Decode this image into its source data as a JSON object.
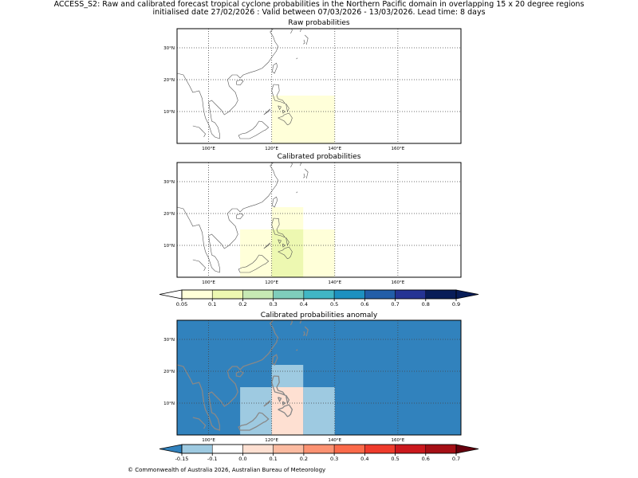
{
  "header": {
    "title_line1": "ACCESS_S2: Raw and calibrated forecast tropical cyclone probabilities in the Northern Pacific domain in overlapping 15 x 20 degree regions",
    "title_line2": "initialised date 27/02/2026 :  Valid between 07/03/2026 - 13/03/2026. Lead time: 8 days"
  },
  "footer": {
    "copyright": "© Commonwealth of Australia 2026, Australian Bureau of Meteorology"
  },
  "chart_data": [
    {
      "type": "heatmap",
      "title": "Raw probabilities",
      "xlim": [
        90,
        180
      ],
      "ylim": [
        0,
        36
      ],
      "xticks": [
        100,
        120,
        140,
        160
      ],
      "xtick_labels": [
        "100°E",
        "120°E",
        "140°E",
        "160°E"
      ],
      "yticks": [
        10,
        20,
        30
      ],
      "ytick_labels": [
        "10°N",
        "20°N",
        "30°N"
      ],
      "grid": true,
      "regions": [
        {
          "lon": [
            120,
            140
          ],
          "lat": [
            0,
            15
          ],
          "value": 0.07
        }
      ]
    },
    {
      "type": "heatmap",
      "title": "Calibrated probabilities",
      "xlim": [
        90,
        180
      ],
      "ylim": [
        0,
        36
      ],
      "xticks": [
        100,
        120,
        140,
        160
      ],
      "xtick_labels": [
        "100°E",
        "120°E",
        "140°E",
        "160°E"
      ],
      "yticks": [
        10,
        20,
        30
      ],
      "ytick_labels": [
        "10°N",
        "20°N",
        "30°N"
      ],
      "grid": true,
      "regions": [
        {
          "lon": [
            110,
            130
          ],
          "lat": [
            0,
            15
          ],
          "value": 0.07
        },
        {
          "lon": [
            120,
            140
          ],
          "lat": [
            0,
            15
          ],
          "value": 0.07
        },
        {
          "lon": [
            120,
            130
          ],
          "lat": [
            0,
            22
          ],
          "value": 0.07
        }
      ]
    },
    {
      "type": "heatmap",
      "title": "Calibrated probabilities anomaly",
      "xlim": [
        90,
        180
      ],
      "ylim": [
        0,
        36
      ],
      "xticks": [
        100,
        120,
        140,
        160
      ],
      "xtick_labels": [
        "100°E",
        "120°E",
        "140°E",
        "160°E"
      ],
      "yticks": [
        10,
        20,
        30
      ],
      "ytick_labels": [
        "10°N",
        "20°N",
        "30°N"
      ],
      "grid": true,
      "background_value": -0.2,
      "regions": [
        {
          "lon": [
            110,
            120
          ],
          "lat": [
            0,
            15
          ],
          "value": -0.12
        },
        {
          "lon": [
            130,
            140
          ],
          "lat": [
            0,
            15
          ],
          "value": -0.12
        },
        {
          "lon": [
            120,
            130
          ],
          "lat": [
            15,
            22
          ],
          "value": -0.12
        },
        {
          "lon": [
            120,
            130
          ],
          "lat": [
            0,
            15
          ],
          "value": 0.0
        }
      ]
    }
  ],
  "colorbars": [
    {
      "name": "probability",
      "ticks": [
        "0.05",
        "0.1",
        "0.2",
        "0.3",
        "0.4",
        "0.5",
        "0.6",
        "0.7",
        "0.8",
        "0.9"
      ],
      "colors": [
        "#ffffd9",
        "#edf8b1",
        "#c7e9b4",
        "#7fcdbb",
        "#41b6c4",
        "#1d91c0",
        "#225ea8",
        "#253494",
        "#081d58"
      ],
      "under_color": "#ffffff",
      "over_color": "#081d58"
    },
    {
      "name": "anomaly",
      "ticks": [
        "-0.15",
        "-0.1",
        "0.0",
        "0.1",
        "0.2",
        "0.3",
        "0.4",
        "0.5",
        "0.6",
        "0.7"
      ],
      "colors": [
        "#9ecae1",
        "#ffffff",
        "#fee0d2",
        "#fcbba1",
        "#fc9272",
        "#fb6a4a",
        "#ef3b2c",
        "#cb181d",
        "#a50f15"
      ],
      "under_color": "#3182bd",
      "over_color": "#67000d"
    }
  ],
  "colors": {
    "raw_region": "#ffffd9",
    "calibrated_overlap": "#edf8b1",
    "anomaly_background": "#3182bd",
    "anomaly_neg": "#9ecae1",
    "anomaly_zero": "#ffffff",
    "coast": "#555555"
  }
}
